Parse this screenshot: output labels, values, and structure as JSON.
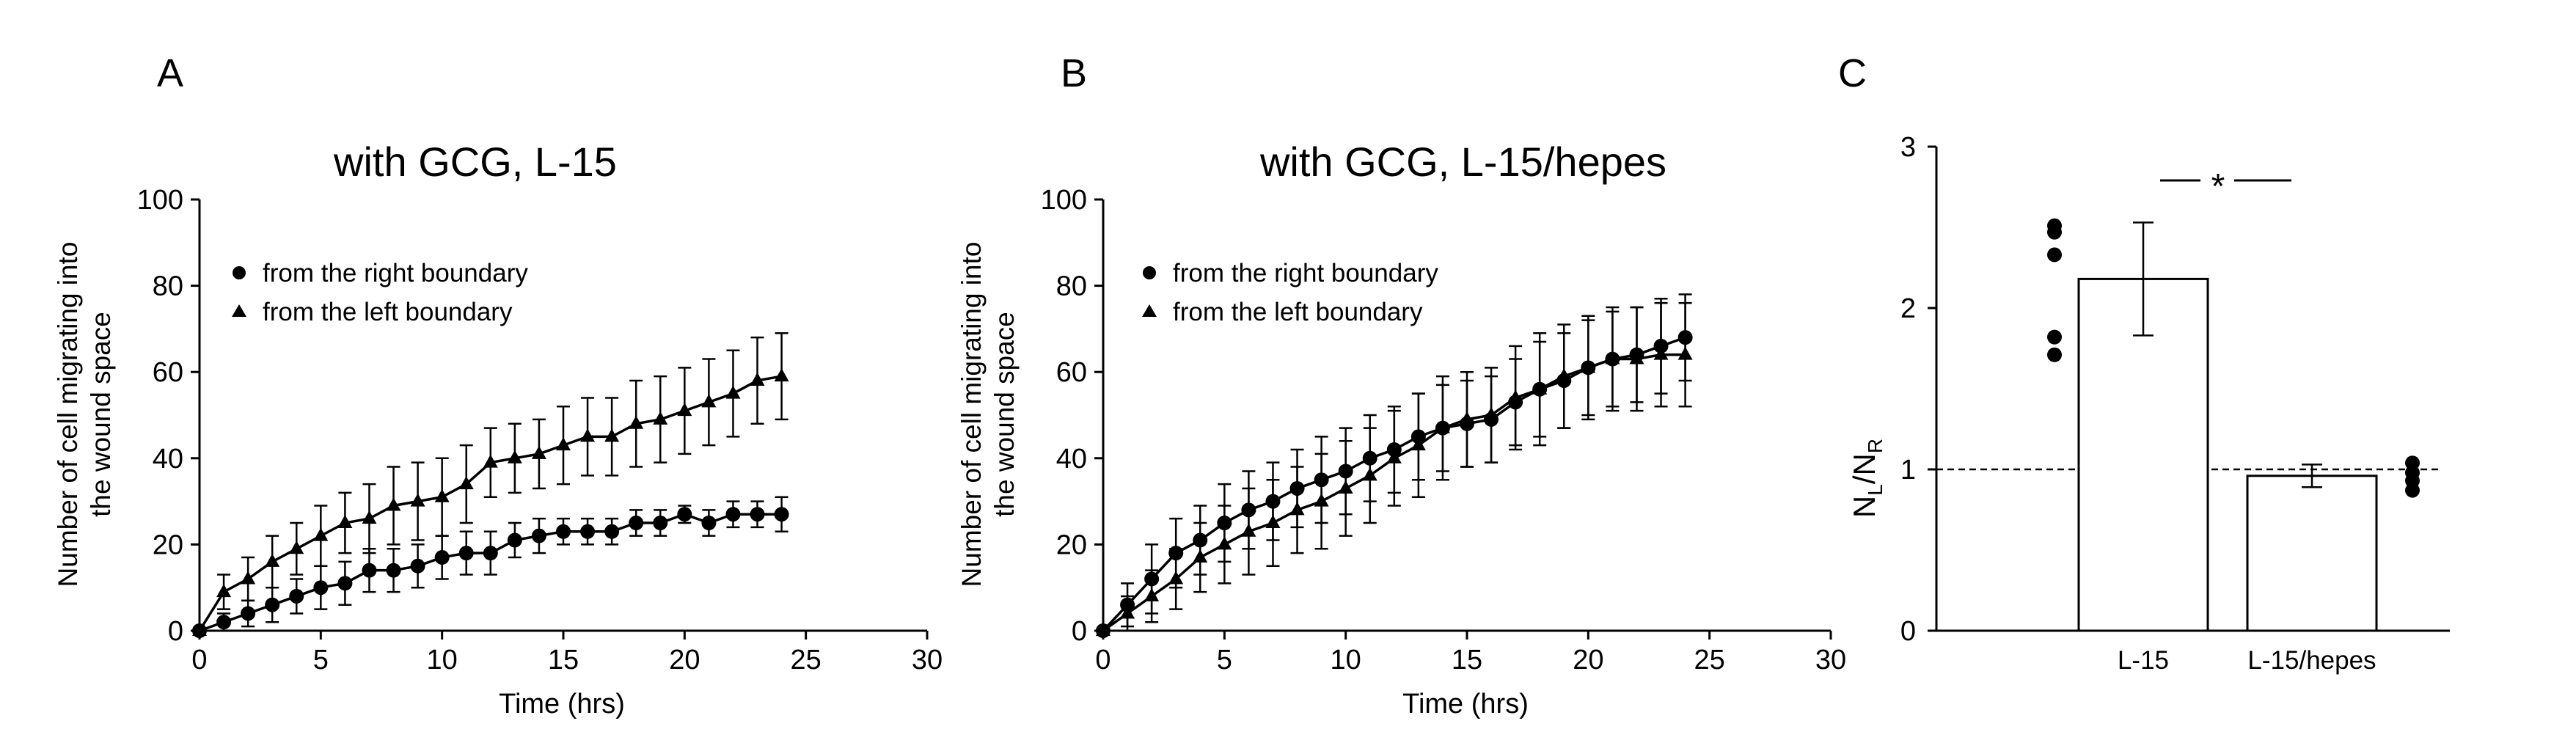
{
  "panels": [
    {
      "letter": "A",
      "chart_data": {
        "type": "line",
        "title": "with GCG, L-15",
        "xlabel": "Time (hrs)",
        "ylabel_lines": [
          "Number of cell migrating into",
          "the wound space"
        ],
        "xlim": [
          0,
          30
        ],
        "ylim": [
          0,
          100
        ],
        "xticks": [
          0,
          5,
          10,
          15,
          20,
          25,
          30
        ],
        "yticks": [
          0,
          20,
          40,
          60,
          80,
          100
        ],
        "legend_position": "top-left",
        "series": [
          {
            "name": "from the right boundary",
            "marker": "circle",
            "x": [
              0,
              1,
              2,
              3,
              4,
              5,
              6,
              7,
              8,
              9,
              10,
              11,
              12,
              13,
              14,
              15,
              16,
              17,
              18,
              19,
              20,
              21,
              22,
              23,
              24
            ],
            "y": [
              0,
              2,
              4,
              6,
              8,
              10,
              11,
              14,
              14,
              15,
              17,
              18,
              18,
              21,
              22,
              23,
              23,
              23,
              25,
              25,
              27,
              25,
              27,
              27,
              27
            ],
            "err": [
              0,
              2,
              3,
              4,
              4,
              5,
              5,
              5,
              5,
              5,
              5,
              5,
              5,
              4,
              4,
              3,
              3,
              3,
              3,
              3,
              2,
              3,
              3,
              3,
              4
            ]
          },
          {
            "name": "from the left boundary",
            "marker": "triangle",
            "x": [
              0,
              1,
              2,
              3,
              4,
              5,
              6,
              7,
              8,
              9,
              10,
              11,
              12,
              13,
              14,
              15,
              16,
              17,
              18,
              19,
              20,
              21,
              22,
              23,
              24
            ],
            "y": [
              0,
              9,
              12,
              16,
              19,
              22,
              25,
              26,
              29,
              30,
              31,
              34,
              39,
              40,
              41,
              43,
              45,
              45,
              48,
              49,
              51,
              53,
              55,
              58,
              59
            ],
            "err": [
              0,
              4,
              5,
              6,
              6,
              7,
              7,
              8,
              9,
              9,
              9,
              9,
              8,
              8,
              8,
              9,
              9,
              9,
              10,
              10,
              10,
              10,
              10,
              10,
              10
            ]
          }
        ]
      }
    },
    {
      "letter": "B",
      "chart_data": {
        "type": "line",
        "title": "with GCG, L-15/hepes",
        "xlabel": "Time (hrs)",
        "ylabel_lines": [
          "Number of cell migrating into",
          "the wound space"
        ],
        "xlim": [
          0,
          30
        ],
        "ylim": [
          0,
          100
        ],
        "xticks": [
          0,
          5,
          10,
          15,
          20,
          25,
          30
        ],
        "yticks": [
          0,
          20,
          40,
          60,
          80,
          100
        ],
        "legend_position": "top-left",
        "series": [
          {
            "name": "from the right boundary",
            "marker": "circle",
            "x": [
              0,
              1,
              2,
              3,
              4,
              5,
              6,
              7,
              8,
              9,
              10,
              11,
              12,
              13,
              14,
              15,
              16,
              17,
              18,
              19,
              20,
              21,
              22,
              23,
              24
            ],
            "y": [
              0,
              6,
              12,
              18,
              21,
              25,
              28,
              30,
              33,
              35,
              37,
              40,
              42,
              45,
              47,
              48,
              49,
              53,
              56,
              58,
              61,
              63,
              64,
              66,
              68
            ],
            "err": [
              0,
              5,
              8,
              8,
              8,
              9,
              9,
              9,
              9,
              10,
              10,
              10,
              10,
              10,
              10,
              10,
              10,
              10,
              11,
              11,
              11,
              11,
              11,
              11,
              10
            ]
          },
          {
            "name": "from the left boundary",
            "marker": "triangle",
            "x": [
              0,
              1,
              2,
              3,
              4,
              5,
              6,
              7,
              8,
              9,
              10,
              11,
              12,
              13,
              14,
              15,
              16,
              17,
              18,
              19,
              20,
              21,
              22,
              23,
              24
            ],
            "y": [
              0,
              4,
              8,
              12,
              17,
              20,
              23,
              25,
              28,
              30,
              33,
              36,
              40,
              43,
              47,
              49,
              50,
              54,
              56,
              59,
              61,
              63,
              63,
              64,
              64
            ],
            "err": [
              0,
              4,
              6,
              7,
              8,
              9,
              10,
              10,
              10,
              11,
              11,
              11,
              11,
              12,
              12,
              11,
              11,
              12,
              13,
              12,
              12,
              12,
              12,
              12,
              12
            ]
          }
        ]
      }
    },
    {
      "letter": "C",
      "chart_data": {
        "type": "bar",
        "title": "",
        "ylabel": "NL/NR",
        "ylabel_main_n": "N",
        "ylabel_sub_l": "L",
        "ylabel_slash": "/",
        "ylabel_sub_r": "R",
        "ylim": [
          0,
          3
        ],
        "yticks": [
          0,
          1,
          2,
          3
        ],
        "reference_line": 1,
        "significance": "*",
        "categories": [
          "L-15",
          "L-15/hepes"
        ],
        "values": [
          2.18,
          0.96
        ],
        "err": [
          0.35,
          0.07
        ],
        "points": [
          [
            1.71,
            1.82,
            2.33,
            2.47,
            2.51
          ],
          [
            0.87,
            0.93,
            0.98,
            1.04
          ]
        ]
      }
    }
  ]
}
